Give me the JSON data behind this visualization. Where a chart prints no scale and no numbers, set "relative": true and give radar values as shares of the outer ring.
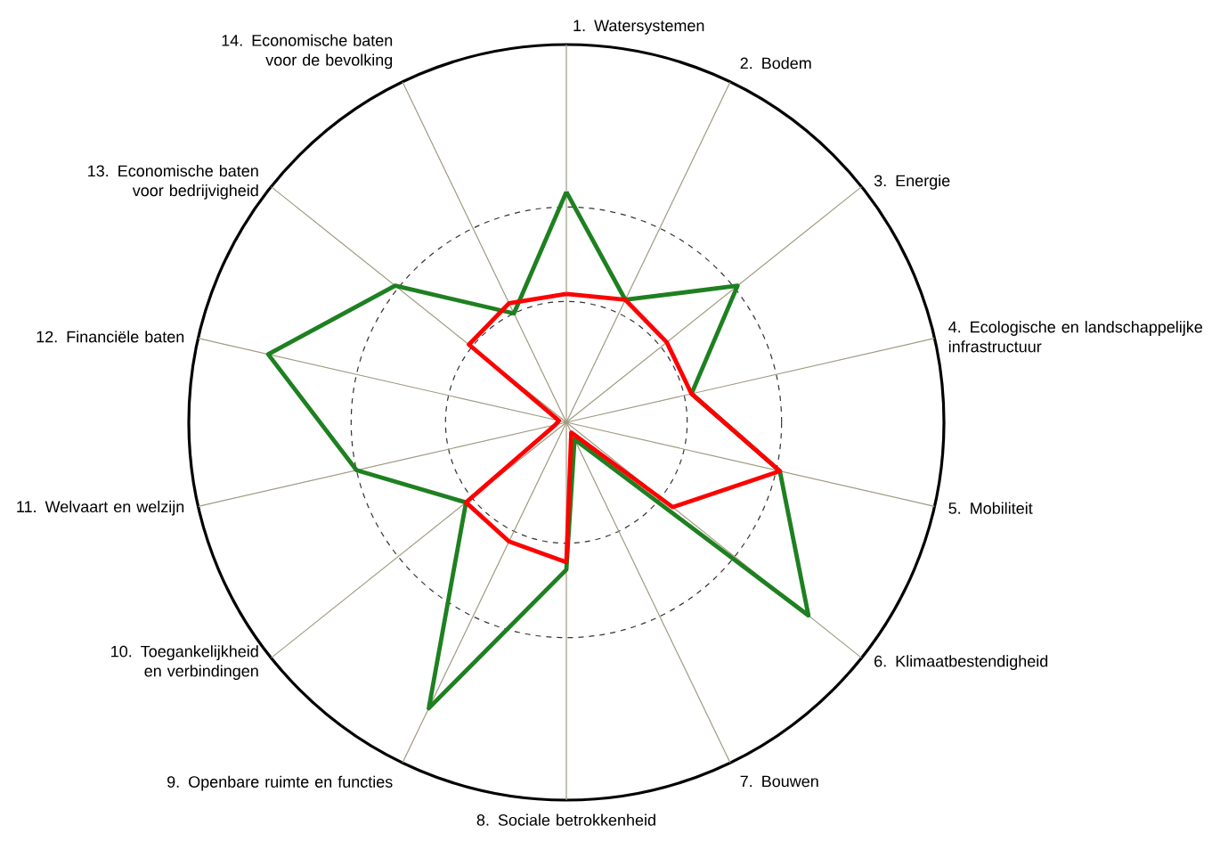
{
  "chart_data": {
    "type": "radar",
    "relative": true,
    "categories": [
      "1. Watersystemen",
      "2. Bodem",
      "3. Energie",
      "4. Ecologische en landschappelijke infrastructuur",
      "5. Mobiliteit",
      "6. Klimaatbestendigheid",
      "7. Bouwen",
      "8. Sociale betrokkenheid",
      "9. Openbare ruimte en functies",
      "10. Toegankelijkheid en verbindingen",
      "11. Welvaart en welzijn",
      "12. Financiële baten",
      "13. Economische baten voor bedrijvigheid",
      "14. Economische baten voor de bevolking"
    ],
    "series": [
      {
        "color": "#1e8020",
        "values": [
          0.61,
          0.36,
          0.58,
          0.34,
          0.58,
          0.82,
          0.05,
          0.39,
          0.84,
          0.34,
          0.57,
          0.81,
          0.58,
          0.32
        ]
      },
      {
        "color": "#ff0000",
        "values": [
          0.34,
          0.36,
          0.34,
          0.34,
          0.58,
          0.36,
          0.03,
          0.37,
          0.35,
          0.34,
          0.03,
          0.02,
          0.33,
          0.35
        ]
      }
    ]
  }
}
